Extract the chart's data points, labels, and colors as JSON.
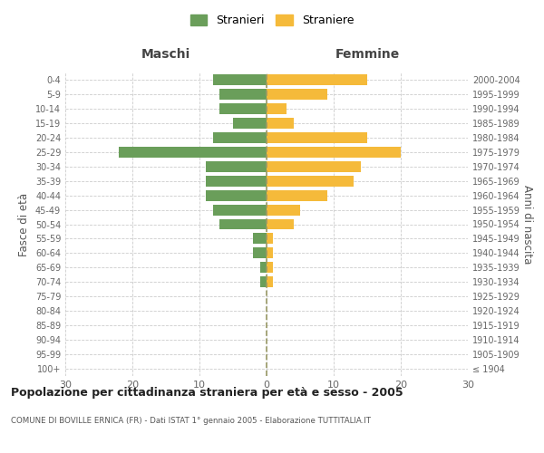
{
  "age_groups": [
    "100+",
    "95-99",
    "90-94",
    "85-89",
    "80-84",
    "75-79",
    "70-74",
    "65-69",
    "60-64",
    "55-59",
    "50-54",
    "45-49",
    "40-44",
    "35-39",
    "30-34",
    "25-29",
    "20-24",
    "15-19",
    "10-14",
    "5-9",
    "0-4"
  ],
  "birth_years": [
    "≤ 1904",
    "1905-1909",
    "1910-1914",
    "1915-1919",
    "1920-1924",
    "1925-1929",
    "1930-1934",
    "1935-1939",
    "1940-1944",
    "1945-1949",
    "1950-1954",
    "1955-1959",
    "1960-1964",
    "1965-1969",
    "1970-1974",
    "1975-1979",
    "1980-1984",
    "1985-1989",
    "1990-1994",
    "1995-1999",
    "2000-2004"
  ],
  "males": [
    0,
    0,
    0,
    0,
    0,
    0,
    1,
    1,
    2,
    2,
    7,
    8,
    9,
    9,
    9,
    22,
    8,
    5,
    7,
    7,
    8
  ],
  "females": [
    0,
    0,
    0,
    0,
    0,
    0,
    1,
    1,
    1,
    1,
    4,
    5,
    9,
    13,
    14,
    20,
    15,
    4,
    3,
    9,
    15
  ],
  "male_color": "#6a9e5a",
  "female_color": "#f5ba3a",
  "title": "Popolazione per cittadinanza straniera per età e sesso - 2005",
  "subtitle": "COMUNE DI BOVILLE ERNICA (FR) - Dati ISTAT 1° gennaio 2005 - Elaborazione TUTTITALIA.IT",
  "ylabel_left": "Fasce di età",
  "ylabel_right": "Anni di nascita",
  "xlabel_left": "Maschi",
  "xlabel_right": "Femmine",
  "xlim": 30,
  "legend_labels": [
    "Stranieri",
    "Straniere"
  ],
  "bg_color": "#ffffff",
  "grid_color": "#cccccc"
}
